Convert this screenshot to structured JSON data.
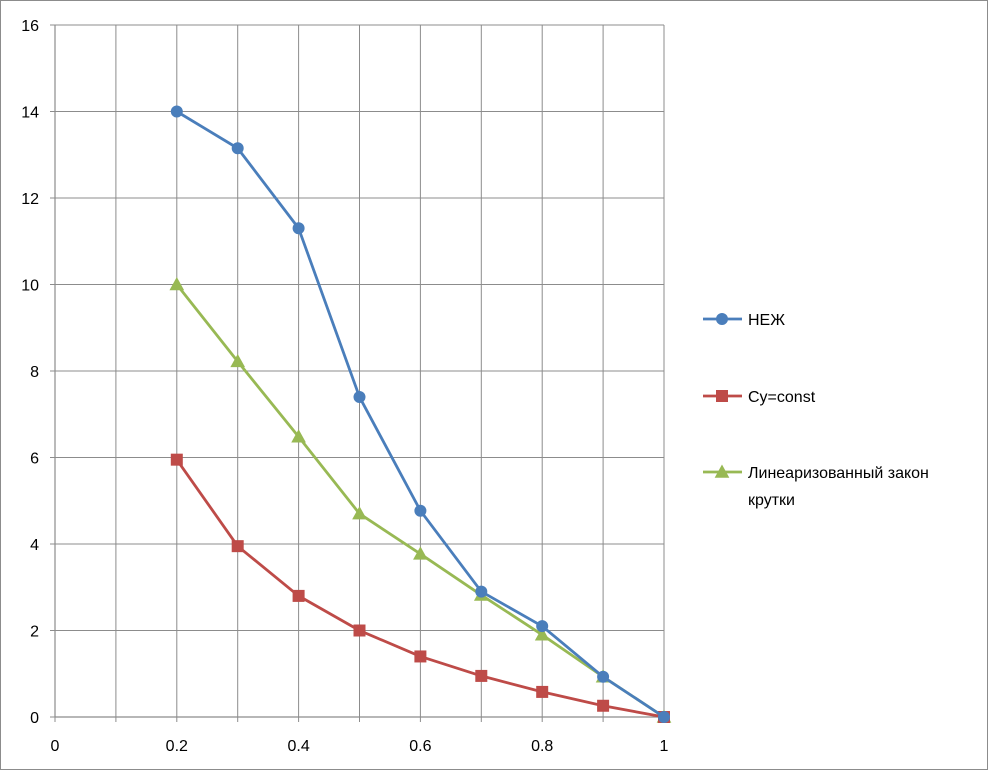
{
  "chart_data": {
    "type": "line",
    "title": "",
    "xlabel": "",
    "ylabel": "",
    "xlim": [
      0,
      1
    ],
    "ylim": [
      0,
      16
    ],
    "x_ticks": [
      "0",
      "0.2",
      "0.4",
      "0.6",
      "0.8",
      "1"
    ],
    "y_ticks": [
      "0",
      "2",
      "4",
      "6",
      "8",
      "10",
      "12",
      "14",
      "16"
    ],
    "grid": true,
    "legend_position": "right",
    "series": [
      {
        "name": "НЕЖ",
        "marker": "circle",
        "color": "#4a7ebb",
        "x": [
          0.2,
          0.3,
          0.4,
          0.5,
          0.6,
          0.7,
          0.8,
          0.9,
          1.0
        ],
        "y": [
          14.0,
          13.15,
          11.3,
          7.4,
          4.77,
          2.9,
          2.1,
          0.93,
          0.0
        ]
      },
      {
        "name": "Cy=const",
        "marker": "square",
        "color": "#be4b48",
        "x": [
          0.2,
          0.3,
          0.4,
          0.5,
          0.6,
          0.7,
          0.8,
          0.9,
          1.0
        ],
        "y": [
          5.95,
          3.95,
          2.8,
          2.0,
          1.4,
          0.95,
          0.58,
          0.26,
          0.0
        ]
      },
      {
        "name": "Линеаризованный закон крутки",
        "legend_lines": [
          "Линеаризованный закон",
          "крутки"
        ],
        "marker": "triangle",
        "color": "#98b954",
        "x": [
          0.2,
          0.3,
          0.4,
          0.5,
          0.6,
          0.7,
          0.8,
          0.9,
          1.0
        ],
        "y": [
          10.0,
          8.22,
          6.48,
          4.7,
          3.77,
          2.82,
          1.9,
          0.93,
          0.0
        ]
      }
    ]
  }
}
